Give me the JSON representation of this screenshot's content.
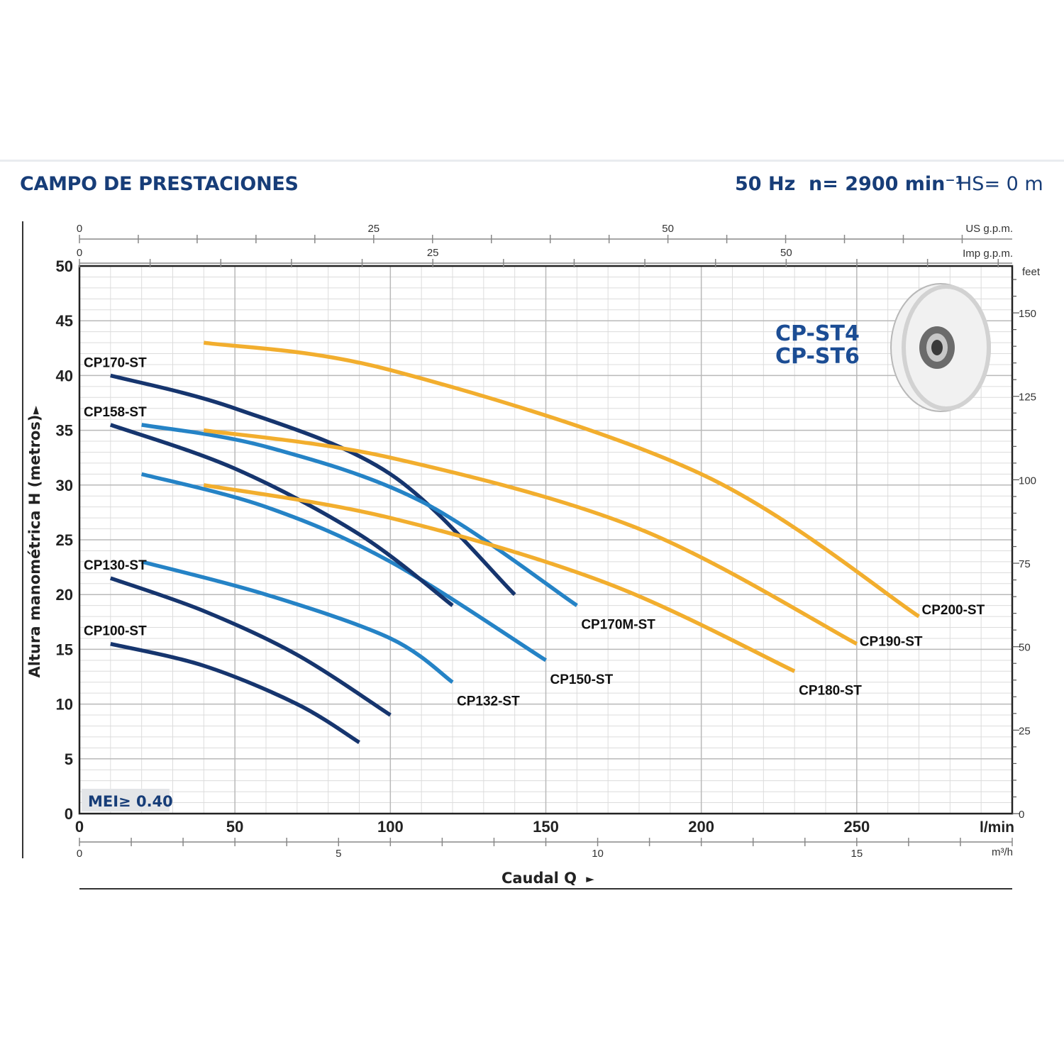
{
  "header": {
    "title": "CAMPO DE PRESTACIONES",
    "frequency": "50 Hz",
    "speed": "n= 2900 min⁻¹",
    "suction_head": "HS= 0 m"
  },
  "colors": {
    "dark_blue": "#16356e",
    "light_blue": "#2583c6",
    "orange": "#f2ae2e",
    "text_blue": "#173d78",
    "grid": "#c9c9c9"
  },
  "chart_data": {
    "type": "line",
    "title": "CP-ST4\nCP-ST6",
    "xlabel": "Caudal Q",
    "ylabel": "Altura manométrica H (metros)",
    "x_unit": "l/min",
    "xlim": [
      0,
      300
    ],
    "ylim": [
      0,
      50
    ],
    "x_ticks": [
      0,
      50,
      100,
      150,
      200,
      250
    ],
    "y_ticks": [
      0,
      5,
      10,
      15,
      20,
      25,
      30,
      35,
      40,
      45,
      50
    ],
    "secondary_axes": {
      "us_gpm": {
        "label": "US g.p.m.",
        "ticks": [
          "0",
          "25",
          "50"
        ]
      },
      "imp_gpm": {
        "label": "Imp g.p.m.",
        "ticks": [
          "0",
          "25",
          "50"
        ]
      },
      "m3h": {
        "label": "m³/h",
        "ticks": [
          "0",
          "5",
          "10",
          "15"
        ]
      },
      "feet": {
        "label": "feet",
        "ticks": [
          "0",
          "25",
          "50",
          "75",
          "100",
          "125",
          "150"
        ]
      }
    },
    "badge": "MEI≥ 0.40",
    "series": [
      {
        "name": "CP100-ST",
        "color": "dark",
        "label_side": "start",
        "x": [
          10,
          40,
          70,
          90
        ],
        "y": [
          15.5,
          13.5,
          10,
          6.5
        ]
      },
      {
        "name": "CP130-ST",
        "color": "dark",
        "label_side": "start",
        "x": [
          10,
          40,
          70,
          100
        ],
        "y": [
          21.5,
          18.5,
          14.5,
          9
        ]
      },
      {
        "name": "CP132-ST",
        "color": "light",
        "label_side": "end",
        "x": [
          20,
          60,
          100,
          120
        ],
        "y": [
          23,
          20,
          16,
          12
        ]
      },
      {
        "name": "CP150-ST",
        "color": "light",
        "label_side": "end",
        "x": [
          20,
          60,
          100,
          150
        ],
        "y": [
          31,
          28,
          23,
          14
        ]
      },
      {
        "name": "CP158-ST",
        "color": "dark",
        "label_side": "start",
        "x": [
          10,
          50,
          90,
          120
        ],
        "y": [
          35.5,
          31.5,
          25.5,
          19
        ]
      },
      {
        "name": "CP170-ST",
        "color": "dark",
        "label_side": "start",
        "x": [
          10,
          50,
          100,
          140
        ],
        "y": [
          40,
          37,
          31,
          20
        ]
      },
      {
        "name": "CP170M-ST",
        "color": "light",
        "label_side": "end",
        "x": [
          20,
          60,
          110,
          160
        ],
        "y": [
          35.5,
          33.5,
          28.5,
          19
        ]
      },
      {
        "name": "CP180-ST",
        "color": "orange",
        "label_side": "end",
        "x": [
          40,
          100,
          170,
          230
        ],
        "y": [
          30,
          27,
          21,
          13
        ]
      },
      {
        "name": "CP190-ST",
        "color": "orange",
        "label_side": "end",
        "x": [
          40,
          100,
          180,
          250
        ],
        "y": [
          35,
          32.5,
          26,
          15.5
        ]
      },
      {
        "name": "CP200-ST",
        "color": "orange",
        "label_side": "end",
        "x": [
          40,
          100,
          200,
          270
        ],
        "y": [
          43,
          40.5,
          31,
          18
        ]
      }
    ]
  }
}
